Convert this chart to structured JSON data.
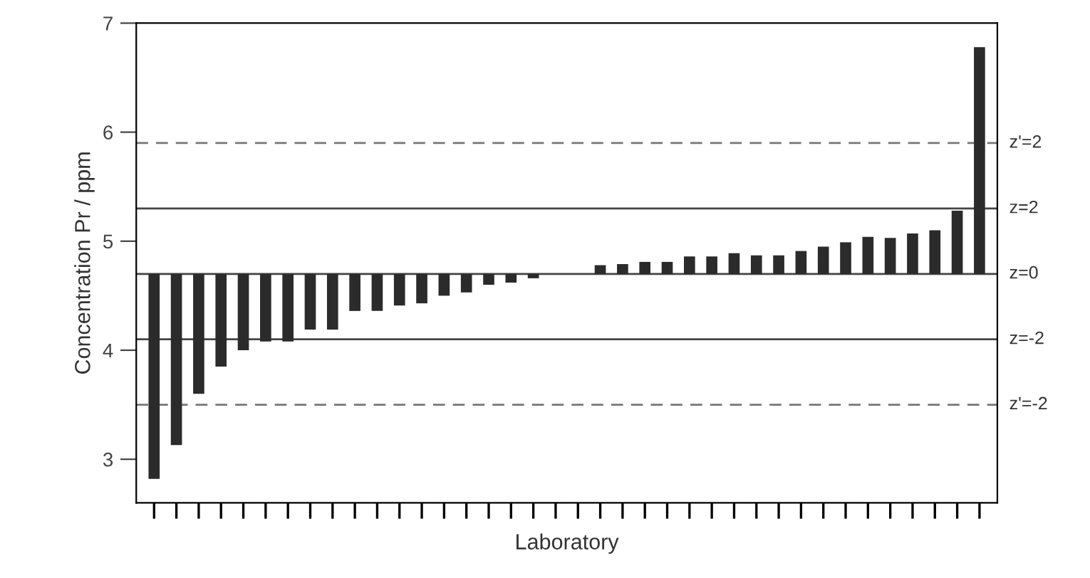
{
  "chart_data": {
    "type": "bar",
    "xlabel": "Laboratory",
    "ylabel": "Concentration Pr / ppm",
    "categories": [
      null,
      null,
      null,
      null,
      null,
      null,
      null,
      null,
      null,
      null,
      null,
      null,
      null,
      null,
      null,
      null,
      null,
      null,
      null,
      null,
      null,
      null,
      null,
      null,
      null,
      null,
      null,
      null,
      null,
      null,
      null,
      null,
      null,
      null,
      null,
      null,
      null,
      null
    ],
    "base": [
      4.7,
      4.7,
      4.7,
      4.7,
      4.7,
      4.7,
      4.7,
      4.7,
      4.7,
      4.7,
      4.7,
      4.7,
      4.7,
      4.7,
      4.7,
      4.7,
      4.7,
      4.7,
      null,
      null,
      4.7,
      4.7,
      4.7,
      4.7,
      4.7,
      4.7,
      4.7,
      4.7,
      4.7,
      4.7,
      4.7,
      4.7,
      4.7,
      4.7,
      4.7,
      4.7,
      4.7,
      4.7
    ],
    "color": "#2b2b2b",
    "values": [
      -1.88,
      -1.57,
      -1.1,
      -0.85,
      -0.7,
      -0.62,
      -0.62,
      -0.51,
      -0.51,
      -0.34,
      -0.34,
      -0.29,
      -0.27,
      -0.2,
      -0.17,
      -0.1,
      -0.08,
      -0.04,
      null,
      null,
      0.08,
      0.09,
      0.11,
      0.11,
      0.16,
      0.16,
      0.19,
      0.17,
      0.17,
      0.21,
      0.25,
      0.29,
      0.34,
      0.33,
      0.37,
      0.4,
      0.58,
      2.08
    ],
    "ylim": [
      2.6,
      7.0
    ],
    "yticks": [
      3,
      4,
      5,
      6,
      7
    ],
    "grid": false,
    "ref_lines": [
      {
        "axis": "y",
        "value": 5.9,
        "color": "#777777",
        "line_style": "dashed"
      },
      {
        "axis": "y",
        "value": 5.3,
        "color": "#444444",
        "line_style": "solid"
      },
      {
        "axis": "y",
        "value": 4.7,
        "color": "#444444",
        "line_style": "solid"
      },
      {
        "axis": "y",
        "value": 4.1,
        "color": "#444444",
        "line_style": "solid"
      },
      {
        "axis": "y",
        "value": 3.5,
        "color": "#777777",
        "line_style": "dashed"
      }
    ],
    "annotations": [
      "z'=2",
      "z=2",
      "z=0",
      "z=-2",
      "z'=-2"
    ]
  }
}
